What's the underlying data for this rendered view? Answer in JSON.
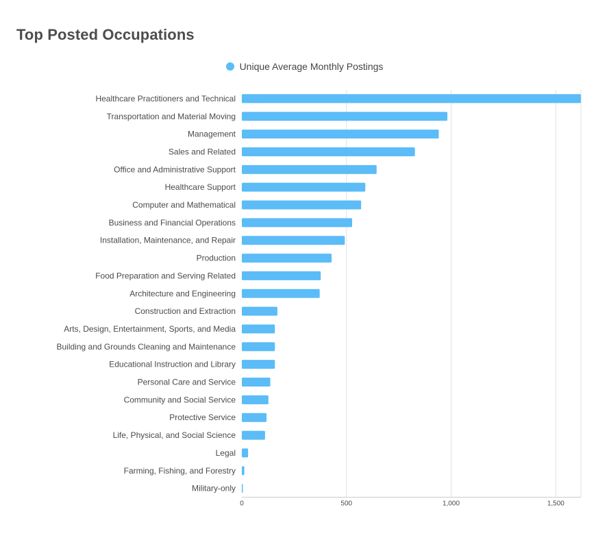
{
  "chart_data": {
    "type": "bar",
    "orientation": "horizontal",
    "title": "Top Posted Occupations",
    "legend_placement": "top-center",
    "grid": true,
    "categories": [
      "Healthcare Practitioners and Technical",
      "Transportation and Material Moving",
      "Management",
      "Sales and Related",
      "Office and Administrative Support",
      "Healthcare Support",
      "Computer and Mathematical",
      "Business and Financial Operations",
      "Installation, Maintenance, and Repair",
      "Production",
      "Food Preparation and Serving Related",
      "Architecture and Engineering",
      "Construction and Extraction",
      "Arts, Design, Entertainment, Sports, and Media",
      "Building and Grounds Cleaning and Maintenance",
      "Educational Instruction and Library",
      "Personal Care and Service",
      "Community and Social Service",
      "Protective Service",
      "Life, Physical, and Social Science",
      "Legal",
      "Farming, Fishing, and Forestry",
      "Military-only"
    ],
    "series": [
      {
        "name": "Unique Average Monthly Postings",
        "color": "#5bbcf7",
        "values": [
          1620,
          982,
          941,
          827,
          644,
          590,
          570,
          527,
          492,
          429,
          377,
          372,
          170,
          158,
          158,
          158,
          136,
          127,
          118,
          111,
          30,
          12,
          2
        ]
      }
    ],
    "xlim": [
      0,
      1620
    ],
    "xticks": [
      0,
      500,
      1000,
      1500
    ],
    "xtick_labels": [
      "0",
      "500",
      "1,000",
      "1,500"
    ],
    "xlabel": "",
    "ylabel": ""
  }
}
